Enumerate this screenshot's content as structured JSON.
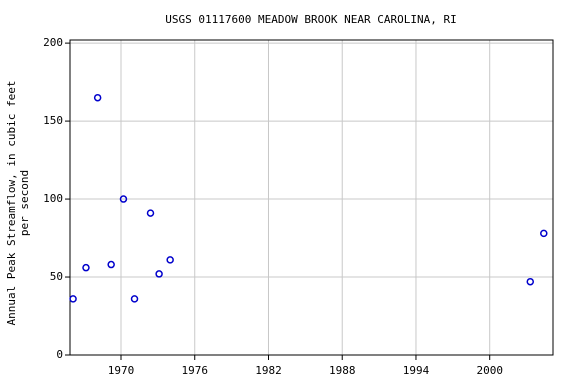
{
  "chart_data": {
    "type": "scatter",
    "title": "USGS 01117600 MEADOW BROOK NEAR CAROLINA, RI",
    "ylabel": [
      "Annual Peak Streamflow, in cubic feet",
      "per second"
    ],
    "series": [
      {
        "color": "#0000cc",
        "x": [
          1966.1,
          1967.15,
          1968.1,
          1969.2,
          1970.2,
          1971.1,
          1972.4,
          1973.1,
          1974.0,
          2003.3,
          2004.4
        ],
        "values": [
          36,
          56,
          165,
          58,
          100,
          36,
          91,
          52,
          61,
          47,
          78
        ]
      }
    ],
    "xlim": [
      1965.85,
      2005.15
    ],
    "xticks": [
      1970,
      1976,
      1982,
      1988,
      1994,
      2000
    ],
    "ylim": [
      0,
      202
    ],
    "yticks": [
      0,
      50,
      100,
      150,
      200
    ],
    "grid": true
  }
}
